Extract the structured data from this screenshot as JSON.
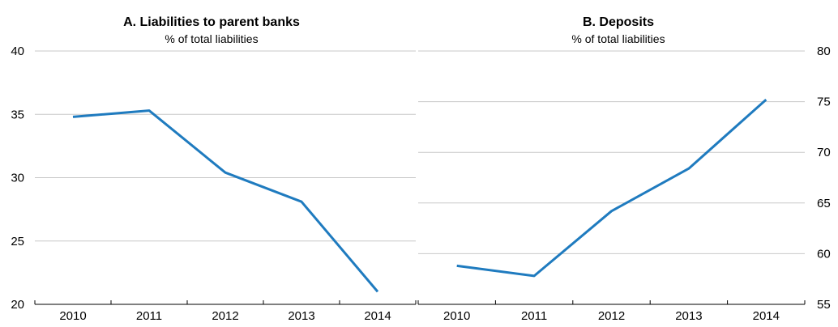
{
  "chart_data": [
    {
      "type": "line",
      "title": "A. Liabilities to parent banks",
      "subtitle": "% of total liabilities",
      "categories": [
        "2010",
        "2011",
        "2012",
        "2013",
        "2014"
      ],
      "values": [
        34.8,
        35.3,
        30.4,
        28.1,
        21.0
      ],
      "ylim": [
        20,
        40
      ],
      "yticks": [
        "20",
        "25",
        "30",
        "35",
        "40"
      ],
      "y_axis_side": "left",
      "grid": true,
      "line_color": "#1f7bbf"
    },
    {
      "type": "line",
      "title": "B. Deposits",
      "subtitle": "% of total liabilities",
      "categories": [
        "2010",
        "2011",
        "2012",
        "2013",
        "2014"
      ],
      "values": [
        58.8,
        57.8,
        64.2,
        68.4,
        75.2
      ],
      "ylim": [
        55,
        80
      ],
      "yticks": [
        "55",
        "60",
        "65",
        "70",
        "75",
        "80"
      ],
      "y_axis_side": "right",
      "grid": true,
      "line_color": "#1f7bbf"
    }
  ]
}
